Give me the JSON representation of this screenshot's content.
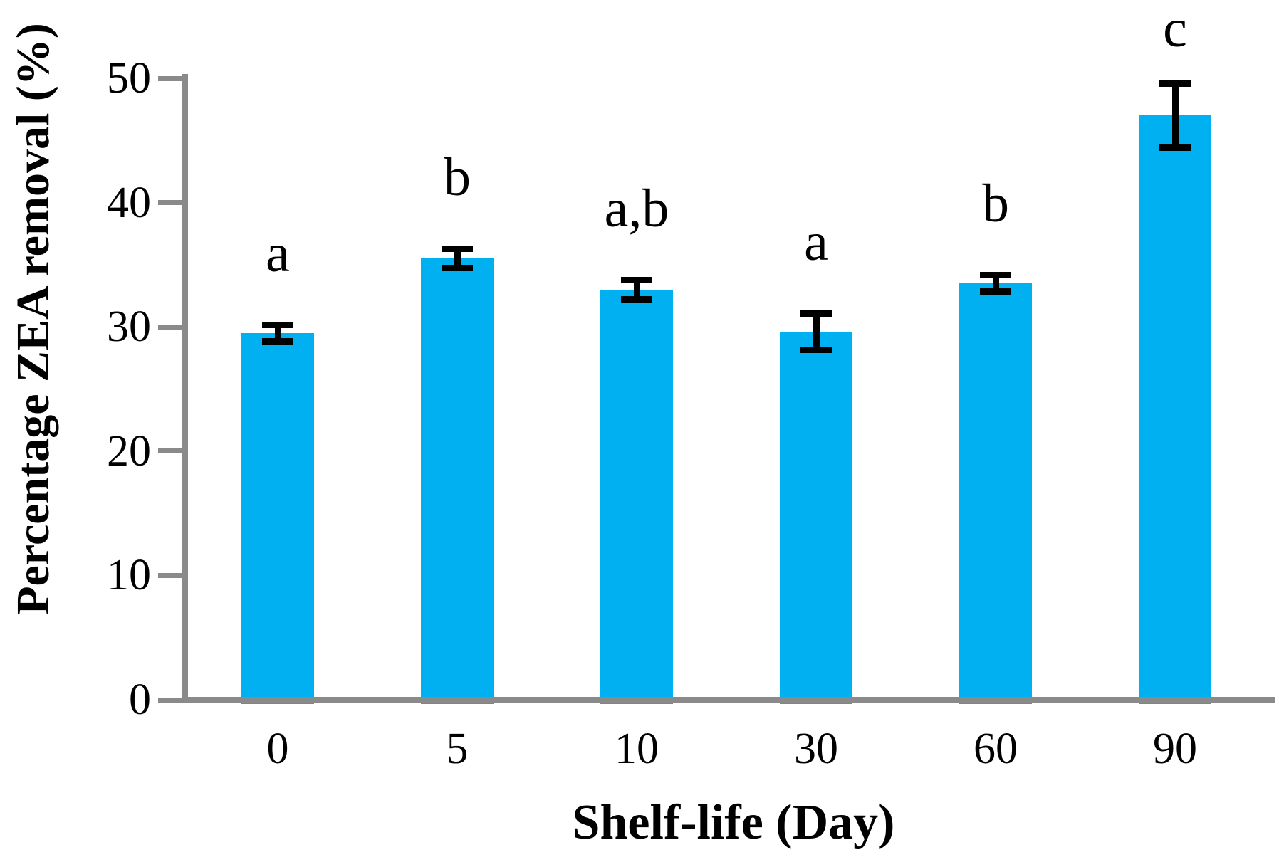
{
  "chart_data": {
    "type": "bar",
    "title": "",
    "xlabel": "Shelf-life (Day)",
    "ylabel": "Percentage  ZEA removal (%)",
    "categories": [
      "0",
      "5",
      "10",
      "30",
      "60",
      "90"
    ],
    "series": [
      {
        "name": "Percentage ZEA removal",
        "values": [
          29.5,
          35.5,
          33.0,
          29.6,
          33.5,
          47.0
        ],
        "errors": [
          0.7,
          0.8,
          0.8,
          1.5,
          0.7,
          2.6
        ],
        "sig_letters": [
          "a",
          "b",
          "a,b",
          "a",
          "b",
          "c"
        ]
      }
    ],
    "ylim": [
      0,
      50
    ],
    "yticks": [
      0,
      10,
      20,
      30,
      40,
      50
    ],
    "grid": false,
    "legend": false,
    "colors": {
      "bar": "#00B0F0",
      "axis": "#8A8A8A",
      "error_bar": "#000000",
      "text": "#000000",
      "background": "#FFFFFF"
    }
  }
}
